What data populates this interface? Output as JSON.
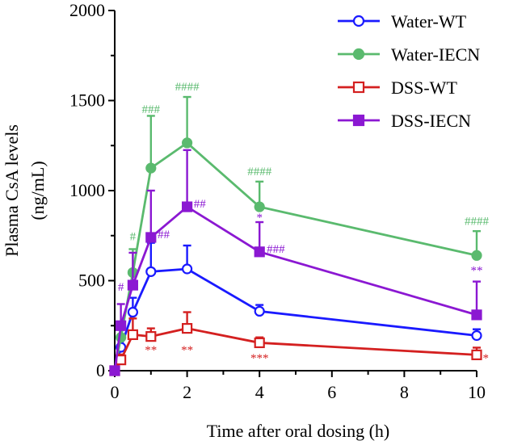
{
  "chart_data": {
    "type": "line",
    "xlabel": "Time after oral dosing (h)",
    "ylabel": "Plasma CsA levels",
    "ylabel_unit": "(ng/mL)",
    "xlim": [
      0,
      10
    ],
    "ylim": [
      0,
      2000
    ],
    "xticks": [
      "0",
      "2",
      "4",
      "6",
      "8",
      "10"
    ],
    "yticks": [
      "0",
      "500",
      "1000",
      "1500",
      "2000"
    ],
    "x": [
      0,
      0.17,
      0.5,
      1,
      2,
      4,
      10
    ],
    "series": [
      {
        "name": "Water-WT",
        "color": "#1a1aff",
        "marker": "circle-open",
        "values": [
          0,
          130,
          325,
          550,
          565,
          330,
          195
        ],
        "errors": [
          0,
          50,
          80,
          160,
          130,
          35,
          35
        ]
      },
      {
        "name": "Water-IECN",
        "color": "#5aba6e",
        "marker": "circle-filled",
        "values": [
          0,
          185,
          545,
          1125,
          1265,
          910,
          640
        ],
        "errors": [
          0,
          75,
          130,
          290,
          255,
          140,
          135
        ]
      },
      {
        "name": "DSS-WT",
        "color": "#d42020",
        "marker": "square-open",
        "values": [
          0,
          60,
          200,
          190,
          235,
          155,
          88
        ],
        "errors": [
          0,
          30,
          90,
          45,
          90,
          30,
          40
        ]
      },
      {
        "name": "DSS-IECN",
        "color": "#8b18d2",
        "marker": "square-filled",
        "values": [
          0,
          250,
          475,
          740,
          910,
          660,
          310
        ],
        "errors": [
          0,
          120,
          180,
          260,
          315,
          165,
          185
        ]
      }
    ],
    "annotations": [
      {
        "text": "#",
        "x": 0.17,
        "y": 445,
        "color": "#8b18d2"
      },
      {
        "text": "#",
        "x": 0.5,
        "y": 725,
        "color": "#5aba6e"
      },
      {
        "text": "###",
        "x": 1,
        "y": 1430,
        "color": "#5aba6e"
      },
      {
        "text": "####",
        "x": 2,
        "y": 1555,
        "color": "#5aba6e"
      },
      {
        "text": "##",
        "x": 2.35,
        "y": 905,
        "color": "#8b18d2"
      },
      {
        "text": "##",
        "x": 1.35,
        "y": 735,
        "color": "#8b18d2"
      },
      {
        "text": "####",
        "x": 4,
        "y": 1085,
        "color": "#5aba6e"
      },
      {
        "text": "*",
        "x": 4,
        "y": 830,
        "color": "#8b18d2"
      },
      {
        "text": "###",
        "x": 4.45,
        "y": 655,
        "color": "#8b18d2"
      },
      {
        "text": "####",
        "x": 10,
        "y": 810,
        "color": "#5aba6e"
      },
      {
        "text": "**",
        "x": 10,
        "y": 535,
        "color": "#8b18d2"
      },
      {
        "text": "**",
        "x": 1,
        "y": 95,
        "color": "#d42020"
      },
      {
        "text": "**",
        "x": 2,
        "y": 95,
        "color": "#d42020"
      },
      {
        "text": "***",
        "x": 4,
        "y": 50,
        "color": "#d42020"
      },
      {
        "text": "*",
        "x": 10.25,
        "y": 50,
        "color": "#d42020"
      }
    ]
  }
}
